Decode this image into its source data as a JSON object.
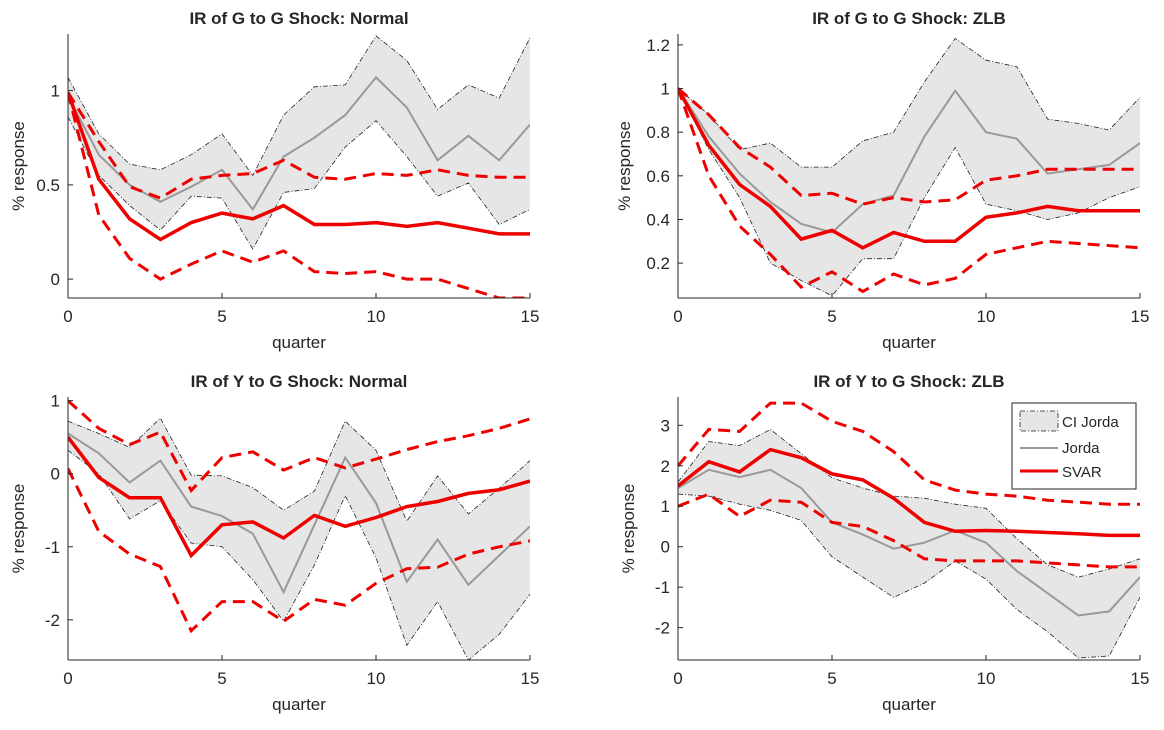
{
  "figure": {
    "legend": {
      "placement": "top-right of panel 4",
      "entries": [
        "CI Jorda",
        "Jorda",
        "SVAR"
      ]
    },
    "colors": {
      "band_fill": "#e6e6e6",
      "band_edge": "#222222",
      "jorda": "#999999",
      "svar": "#ee0000"
    }
  },
  "chart_data": [
    {
      "type": "line",
      "title": "IR of G to G Shock: Normal",
      "xlabel": "quarter",
      "ylabel": "% response",
      "xlim": [
        0,
        15
      ],
      "ylim": [
        -0.1,
        1.3
      ],
      "xticks": [
        0,
        5,
        10,
        15
      ],
      "yticks": [
        0,
        0.5,
        1
      ],
      "ytick_labels": [
        "0",
        "0.5",
        "1"
      ],
      "grid": false,
      "legend": false,
      "x": [
        0,
        1,
        2,
        3,
        4,
        5,
        6,
        7,
        8,
        9,
        10,
        11,
        12,
        13,
        14,
        15
      ],
      "ci_jorda": {
        "upper": [
          1.07,
          0.77,
          0.61,
          0.58,
          0.66,
          0.77,
          0.55,
          0.87,
          1.02,
          1.03,
          1.29,
          1.16,
          0.9,
          1.03,
          0.96,
          1.28
        ],
        "lower": [
          0.86,
          0.55,
          0.39,
          0.26,
          0.44,
          0.43,
          0.16,
          0.46,
          0.48,
          0.7,
          0.84,
          0.65,
          0.44,
          0.51,
          0.29,
          0.37
        ]
      },
      "jorda": [
        0.97,
        0.66,
        0.5,
        0.41,
        0.49,
        0.58,
        0.37,
        0.65,
        0.75,
        0.87,
        1.07,
        0.91,
        0.63,
        0.76,
        0.63,
        0.82
      ],
      "svar": {
        "estimate": [
          0.99,
          0.53,
          0.32,
          0.21,
          0.3,
          0.35,
          0.32,
          0.39,
          0.29,
          0.29,
          0.3,
          0.28,
          0.3,
          0.27,
          0.24,
          0.24
        ],
        "upper": [
          0.99,
          0.73,
          0.49,
          0.43,
          0.53,
          0.55,
          0.56,
          0.63,
          0.54,
          0.53,
          0.56,
          0.55,
          0.58,
          0.55,
          0.54,
          0.54
        ],
        "lower": [
          0.99,
          0.34,
          0.11,
          0.0,
          0.08,
          0.15,
          0.09,
          0.15,
          0.04,
          0.03,
          0.04,
          0.0,
          0.0,
          -0.05,
          -0.1,
          -0.1
        ]
      }
    },
    {
      "type": "line",
      "title": "IR of G to G Shock: ZLB",
      "xlabel": "quarter",
      "ylabel": "% response",
      "xlim": [
        0,
        15
      ],
      "ylim": [
        0.04,
        1.25
      ],
      "xticks": [
        0,
        5,
        10,
        15
      ],
      "yticks": [
        0.2,
        0.4,
        0.6,
        0.8,
        1,
        1.2
      ],
      "ytick_labels": [
        "0.2",
        "0.4",
        "0.6",
        "0.8",
        "1",
        "1.2"
      ],
      "grid": false,
      "legend": false,
      "x": [
        0,
        1,
        2,
        3,
        4,
        5,
        6,
        7,
        8,
        9,
        10,
        11,
        12,
        13,
        14,
        15
      ],
      "ci_jorda": {
        "upper": [
          1.0,
          0.88,
          0.72,
          0.75,
          0.64,
          0.64,
          0.76,
          0.8,
          1.03,
          1.23,
          1.13,
          1.1,
          0.86,
          0.84,
          0.81,
          0.96
        ],
        "lower": [
          1.0,
          0.72,
          0.5,
          0.2,
          0.12,
          0.05,
          0.22,
          0.22,
          0.5,
          0.73,
          0.47,
          0.44,
          0.4,
          0.43,
          0.5,
          0.55
        ]
      },
      "jorda": [
        1.0,
        0.78,
        0.61,
        0.48,
        0.38,
        0.34,
        0.47,
        0.51,
        0.78,
        0.99,
        0.8,
        0.77,
        0.61,
        0.63,
        0.65,
        0.75
      ],
      "svar": {
        "estimate": [
          1.0,
          0.74,
          0.56,
          0.46,
          0.31,
          0.35,
          0.27,
          0.34,
          0.3,
          0.3,
          0.41,
          0.43,
          0.46,
          0.44,
          0.44,
          0.44
        ],
        "upper": [
          1.0,
          0.88,
          0.73,
          0.64,
          0.51,
          0.52,
          0.47,
          0.5,
          0.48,
          0.49,
          0.58,
          0.6,
          0.63,
          0.63,
          0.63,
          0.63
        ],
        "lower": [
          1.0,
          0.6,
          0.37,
          0.24,
          0.09,
          0.16,
          0.07,
          0.15,
          0.1,
          0.13,
          0.24,
          0.27,
          0.3,
          0.29,
          0.28,
          0.27
        ]
      }
    },
    {
      "type": "line",
      "title": "IR of Y to G Shock: Normal",
      "xlabel": "quarter",
      "ylabel": "% response",
      "xlim": [
        0,
        15
      ],
      "ylim": [
        -2.55,
        1.05
      ],
      "xticks": [
        0,
        5,
        10,
        15
      ],
      "yticks": [
        -2,
        -1,
        0,
        1
      ],
      "ytick_labels": [
        "-2",
        "-1",
        "0",
        "1"
      ],
      "grid": false,
      "legend": false,
      "x": [
        0,
        1,
        2,
        3,
        4,
        5,
        6,
        7,
        8,
        9,
        10,
        11,
        12,
        13,
        14,
        15
      ],
      "ci_jorda": {
        "upper": [
          0.72,
          0.55,
          0.36,
          0.76,
          -0.02,
          -0.03,
          -0.19,
          -0.5,
          -0.24,
          0.72,
          0.32,
          -0.65,
          -0.03,
          -0.55,
          -0.2,
          0.18
        ],
        "lower": [
          0.32,
          0.0,
          -0.62,
          -0.37,
          -0.95,
          -1.0,
          -1.45,
          -2.02,
          -1.25,
          -0.3,
          -1.15,
          -2.35,
          -1.75,
          -2.55,
          -2.2,
          -1.65
        ]
      },
      "jorda": [
        0.55,
        0.28,
        -0.12,
        0.18,
        -0.45,
        -0.58,
        -0.82,
        -1.62,
        -0.7,
        0.22,
        -0.4,
        -1.48,
        -0.9,
        -1.52,
        -1.12,
        -0.72
      ],
      "svar": {
        "estimate": [
          0.5,
          -0.05,
          -0.33,
          -0.33,
          -1.12,
          -0.7,
          -0.66,
          -0.88,
          -0.57,
          -0.72,
          -0.6,
          -0.45,
          -0.38,
          -0.27,
          -0.22,
          -0.1
        ],
        "upper": [
          1.0,
          0.62,
          0.4,
          0.57,
          -0.23,
          0.22,
          0.3,
          0.05,
          0.22,
          0.08,
          0.2,
          0.33,
          0.44,
          0.52,
          0.62,
          0.75
        ],
        "lower": [
          0.07,
          -0.79,
          -1.1,
          -1.27,
          -2.15,
          -1.75,
          -1.75,
          -2.02,
          -1.72,
          -1.8,
          -1.5,
          -1.3,
          -1.28,
          -1.1,
          -1.0,
          -0.92
        ]
      }
    },
    {
      "type": "line",
      "title": "IR of Y to G Shock: ZLB",
      "xlabel": "quarter",
      "ylabel": "% response",
      "xlim": [
        0,
        15
      ],
      "ylim": [
        -2.8,
        3.7
      ],
      "xticks": [
        0,
        5,
        10,
        15
      ],
      "yticks": [
        -2,
        -1,
        0,
        1,
        2,
        3
      ],
      "ytick_labels": [
        "-2",
        "-1",
        "0",
        "1",
        "2",
        "3"
      ],
      "grid": false,
      "legend": true,
      "x": [
        0,
        1,
        2,
        3,
        4,
        5,
        6,
        7,
        8,
        9,
        10,
        11,
        12,
        13,
        14,
        15
      ],
      "ci_jorda": {
        "upper": [
          1.6,
          2.6,
          2.5,
          2.9,
          2.3,
          1.7,
          1.45,
          1.25,
          1.2,
          1.05,
          0.95,
          0.2,
          -0.45,
          -0.75,
          -0.55,
          -0.3
        ],
        "lower": [
          1.3,
          1.25,
          1.05,
          0.9,
          0.65,
          -0.25,
          -0.75,
          -1.25,
          -0.9,
          -0.35,
          -0.8,
          -1.55,
          -2.1,
          -2.75,
          -2.7,
          -1.25
        ]
      },
      "jorda": [
        1.45,
        1.9,
        1.72,
        1.9,
        1.45,
        0.6,
        0.3,
        -0.05,
        0.1,
        0.4,
        0.1,
        -0.6,
        -1.15,
        -1.7,
        -1.6,
        -0.75
      ],
      "svar": {
        "estimate": [
          1.5,
          2.1,
          1.85,
          2.4,
          2.2,
          1.8,
          1.65,
          1.2,
          0.6,
          0.38,
          0.4,
          0.38,
          0.35,
          0.32,
          0.28,
          0.28
        ],
        "upper": [
          2.0,
          2.9,
          2.85,
          3.55,
          3.55,
          3.1,
          2.85,
          2.35,
          1.65,
          1.4,
          1.3,
          1.25,
          1.15,
          1.1,
          1.05,
          1.05
        ],
        "lower": [
          1.0,
          1.3,
          0.75,
          1.15,
          1.1,
          0.6,
          0.5,
          0.15,
          -0.3,
          -0.35,
          -0.35,
          -0.35,
          -0.4,
          -0.45,
          -0.5,
          -0.5
        ]
      }
    }
  ]
}
